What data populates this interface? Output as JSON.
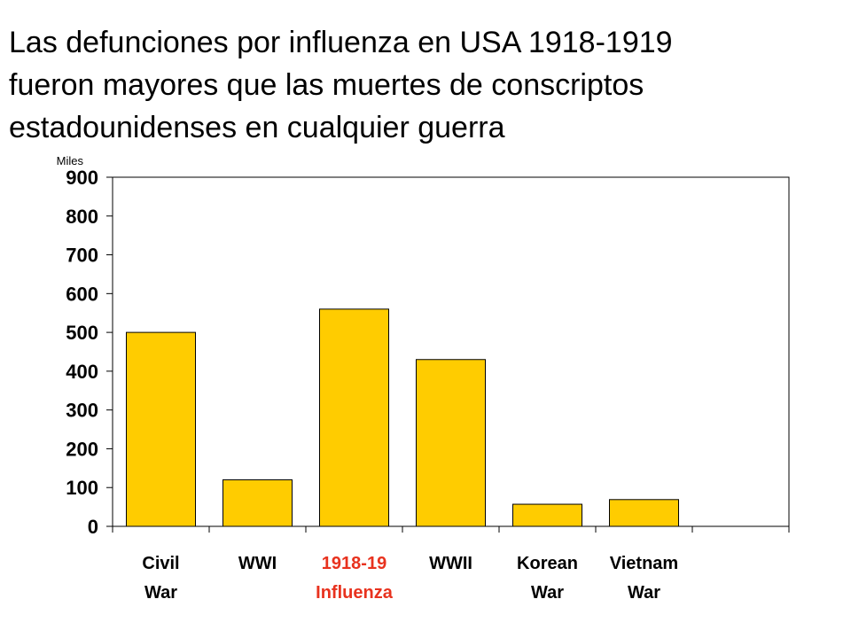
{
  "title_lines": [
    "Las defunciones por influenza en USA 1918-1919",
    "fueron mayores que las muertes de conscriptos",
    "estadounidenses en cualquier guerra"
  ],
  "chart_data": {
    "type": "bar",
    "title": "Las defunciones por influenza en USA 1918-1919 fueron mayores que las muertes de conscriptos estadounidenses en cualquier guerra",
    "ylabel": "Miles",
    "xlabel": "",
    "ylim": [
      0,
      900
    ],
    "yticks": [
      0,
      100,
      200,
      300,
      400,
      500,
      600,
      700,
      800,
      900
    ],
    "categories": [
      {
        "line1": "Civil",
        "line2": "War",
        "highlight": false
      },
      {
        "line1": "WWI",
        "line2": "",
        "highlight": false
      },
      {
        "line1": "1918-19",
        "line2": "Influenza",
        "highlight": true
      },
      {
        "line1": "WWII",
        "line2": "",
        "highlight": false
      },
      {
        "line1": "Korean",
        "line2": "War",
        "highlight": false
      },
      {
        "line1": "Vietnam",
        "line2": "War",
        "highlight": false
      }
    ],
    "values": [
      500,
      120,
      560,
      430,
      57,
      69
    ],
    "bar_color": "#FFCC00",
    "highlight_label_color": "#E8321E",
    "label_color": "#000000",
    "grid": false
  }
}
